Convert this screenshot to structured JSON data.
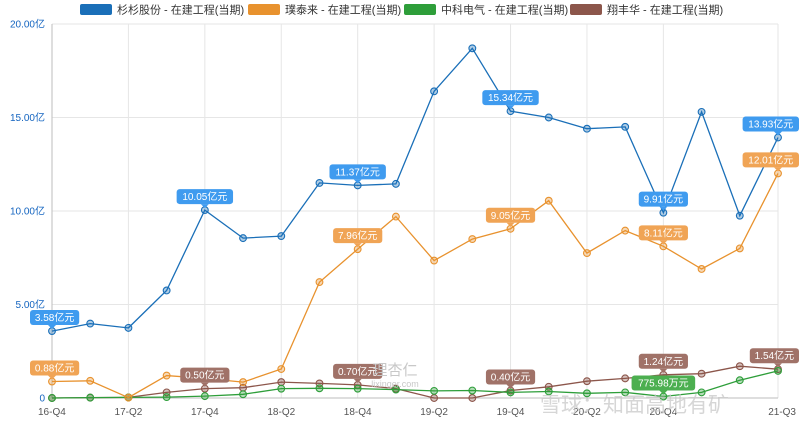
{
  "chart_data": {
    "type": "line",
    "categories": [
      "16-Q4",
      "17-Q1",
      "17-Q2",
      "17-Q3",
      "17-Q4",
      "18-Q1",
      "18-Q2",
      "18-Q3",
      "18-Q4",
      "19-Q1",
      "19-Q2",
      "19-Q3",
      "19-Q4",
      "20-Q1",
      "20-Q2",
      "20-Q3",
      "20-Q4",
      "21-Q1",
      "21-Q2",
      "21-Q3"
    ],
    "x_tick_labels": [
      "16-Q4",
      "17-Q2",
      "17-Q4",
      "18-Q2",
      "18-Q4",
      "19-Q2",
      "19-Q4",
      "20-Q2",
      "20-Q4",
      "21-Q3"
    ],
    "y_ticks": [
      {
        "value": 0,
        "label": "0"
      },
      {
        "value": 5,
        "label": "5.00亿"
      },
      {
        "value": 10,
        "label": "10.00亿"
      },
      {
        "value": 15,
        "label": "15.00亿"
      },
      {
        "value": 20,
        "label": "20.00亿"
      }
    ],
    "ylim": [
      0,
      20
    ],
    "grid": true,
    "legend_position": "top",
    "series": [
      {
        "name": "杉杉股份 - 在建工程(当期)",
        "color": "#1a6fb8",
        "label_color": "#3f9bef",
        "values": [
          3.58,
          3.98,
          3.75,
          5.75,
          10.05,
          8.55,
          8.66,
          11.5,
          11.37,
          11.45,
          16.4,
          18.7,
          15.34,
          15.0,
          14.4,
          14.5,
          9.91,
          15.3,
          9.75,
          13.93
        ],
        "labels": [
          {
            "index": 0,
            "text": "3.58亿元"
          },
          {
            "index": 4,
            "text": "10.05亿元"
          },
          {
            "index": 8,
            "text": "11.37亿元"
          },
          {
            "index": 12,
            "text": "15.34亿元"
          },
          {
            "index": 16,
            "text": "9.91亿元"
          },
          {
            "index": 19,
            "text": "13.93亿元"
          }
        ]
      },
      {
        "name": "璞泰来 - 在建工程(当期)",
        "color": "#e8922e",
        "label_color": "#f0a455",
        "values": [
          0.88,
          0.92,
          0.02,
          1.2,
          1.05,
          0.85,
          1.55,
          6.2,
          7.96,
          9.7,
          7.35,
          8.5,
          9.05,
          10.55,
          7.75,
          8.95,
          8.11,
          6.9,
          8.0,
          12.01
        ],
        "labels": [
          {
            "index": 0,
            "text": "0.88亿元"
          },
          {
            "index": 8,
            "text": "7.96亿元"
          },
          {
            "index": 12,
            "text": "9.05亿元"
          },
          {
            "index": 16,
            "text": "8.11亿元"
          },
          {
            "index": 19,
            "text": "12.01亿元"
          }
        ]
      },
      {
        "name": "中科电气 - 在建工程(当期)",
        "color": "#2e9e3a",
        "label_color": "#4caf50",
        "values": [
          0.0,
          0.02,
          0.03,
          0.05,
          0.1,
          0.2,
          0.5,
          0.52,
          0.5,
          0.45,
          0.38,
          0.4,
          0.3,
          0.35,
          0.25,
          0.3,
          0.078,
          0.3,
          0.95,
          1.45
        ],
        "labels": [
          {
            "index": 16,
            "text": "775.98万元"
          }
        ]
      },
      {
        "name": "翔丰华 - 在建工程(当期)",
        "color": "#8c564b",
        "label_color": "#a07268",
        "values": [
          0.0,
          0.02,
          0.03,
          0.3,
          0.5,
          0.55,
          0.85,
          0.78,
          0.7,
          0.5,
          0.0,
          0.0,
          0.4,
          0.6,
          0.9,
          1.05,
          1.24,
          1.3,
          1.7,
          1.54
        ],
        "labels": [
          {
            "index": 4,
            "text": "0.50亿元"
          },
          {
            "index": 8,
            "text": "0.70亿元"
          },
          {
            "index": 12,
            "text": "0.40亿元"
          },
          {
            "index": 16,
            "text": "1.24亿元"
          },
          {
            "index": 19,
            "text": "1.54亿元"
          }
        ]
      }
    ]
  },
  "watermarks": {
    "center_cn": "理杏仁",
    "center_en": "lixinger.com",
    "right": "雪球：知面高地有矿"
  }
}
